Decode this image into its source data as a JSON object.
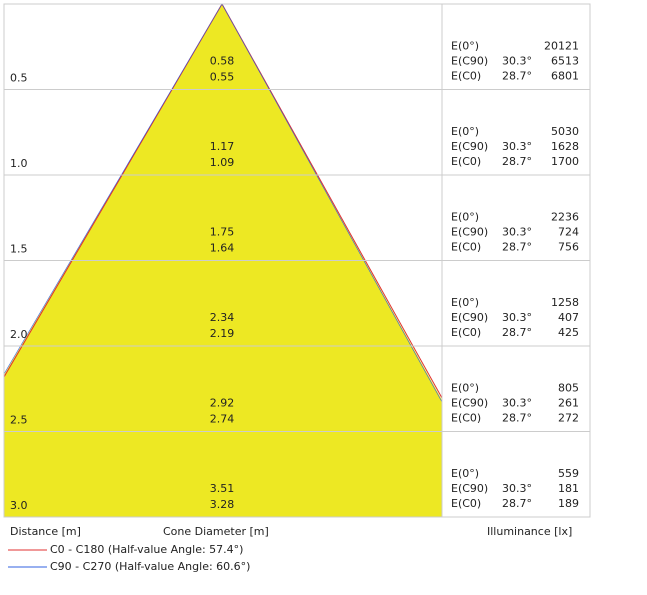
{
  "labels": {
    "e0": "E(0°)",
    "ec90": "E(C90)",
    "ec0": "E(C0)",
    "angle_c90": "30.3°",
    "angle_c0": "28.7°"
  },
  "rows": [
    {
      "distance": "0.5",
      "diameter_c90": "0.58",
      "diameter_c0": "0.55",
      "e0": "20121",
      "ec90": "6513",
      "ec0": "6801"
    },
    {
      "distance": "1.0",
      "diameter_c90": "1.17",
      "diameter_c0": "1.09",
      "e0": "5030",
      "ec90": "1628",
      "ec0": "1700"
    },
    {
      "distance": "1.5",
      "diameter_c90": "1.75",
      "diameter_c0": "1.64",
      "e0": "2236",
      "ec90": "724",
      "ec0": "756"
    },
    {
      "distance": "2.0",
      "diameter_c90": "2.34",
      "diameter_c0": "2.19",
      "e0": "1258",
      "ec90": "407",
      "ec0": "425"
    },
    {
      "distance": "2.5",
      "diameter_c90": "2.92",
      "diameter_c0": "2.74",
      "e0": "805",
      "ec90": "261",
      "ec0": "272"
    },
    {
      "distance": "3.0",
      "diameter_c90": "3.51",
      "diameter_c0": "3.28",
      "e0": "559",
      "ec90": "181",
      "ec0": "189"
    }
  ],
  "footer": {
    "distance": "Distance [m]",
    "diameter": "Cone Diameter [m]",
    "illuminance": "Illuminance [lx]"
  },
  "legend": [
    {
      "label": "C0 - C180 (Half-value Angle: 57.4°)",
      "color": "#e03030"
    },
    {
      "label": "C90 - C270 (Half-value Angle: 60.6°)",
      "color": "#3060e0"
    }
  ]
}
